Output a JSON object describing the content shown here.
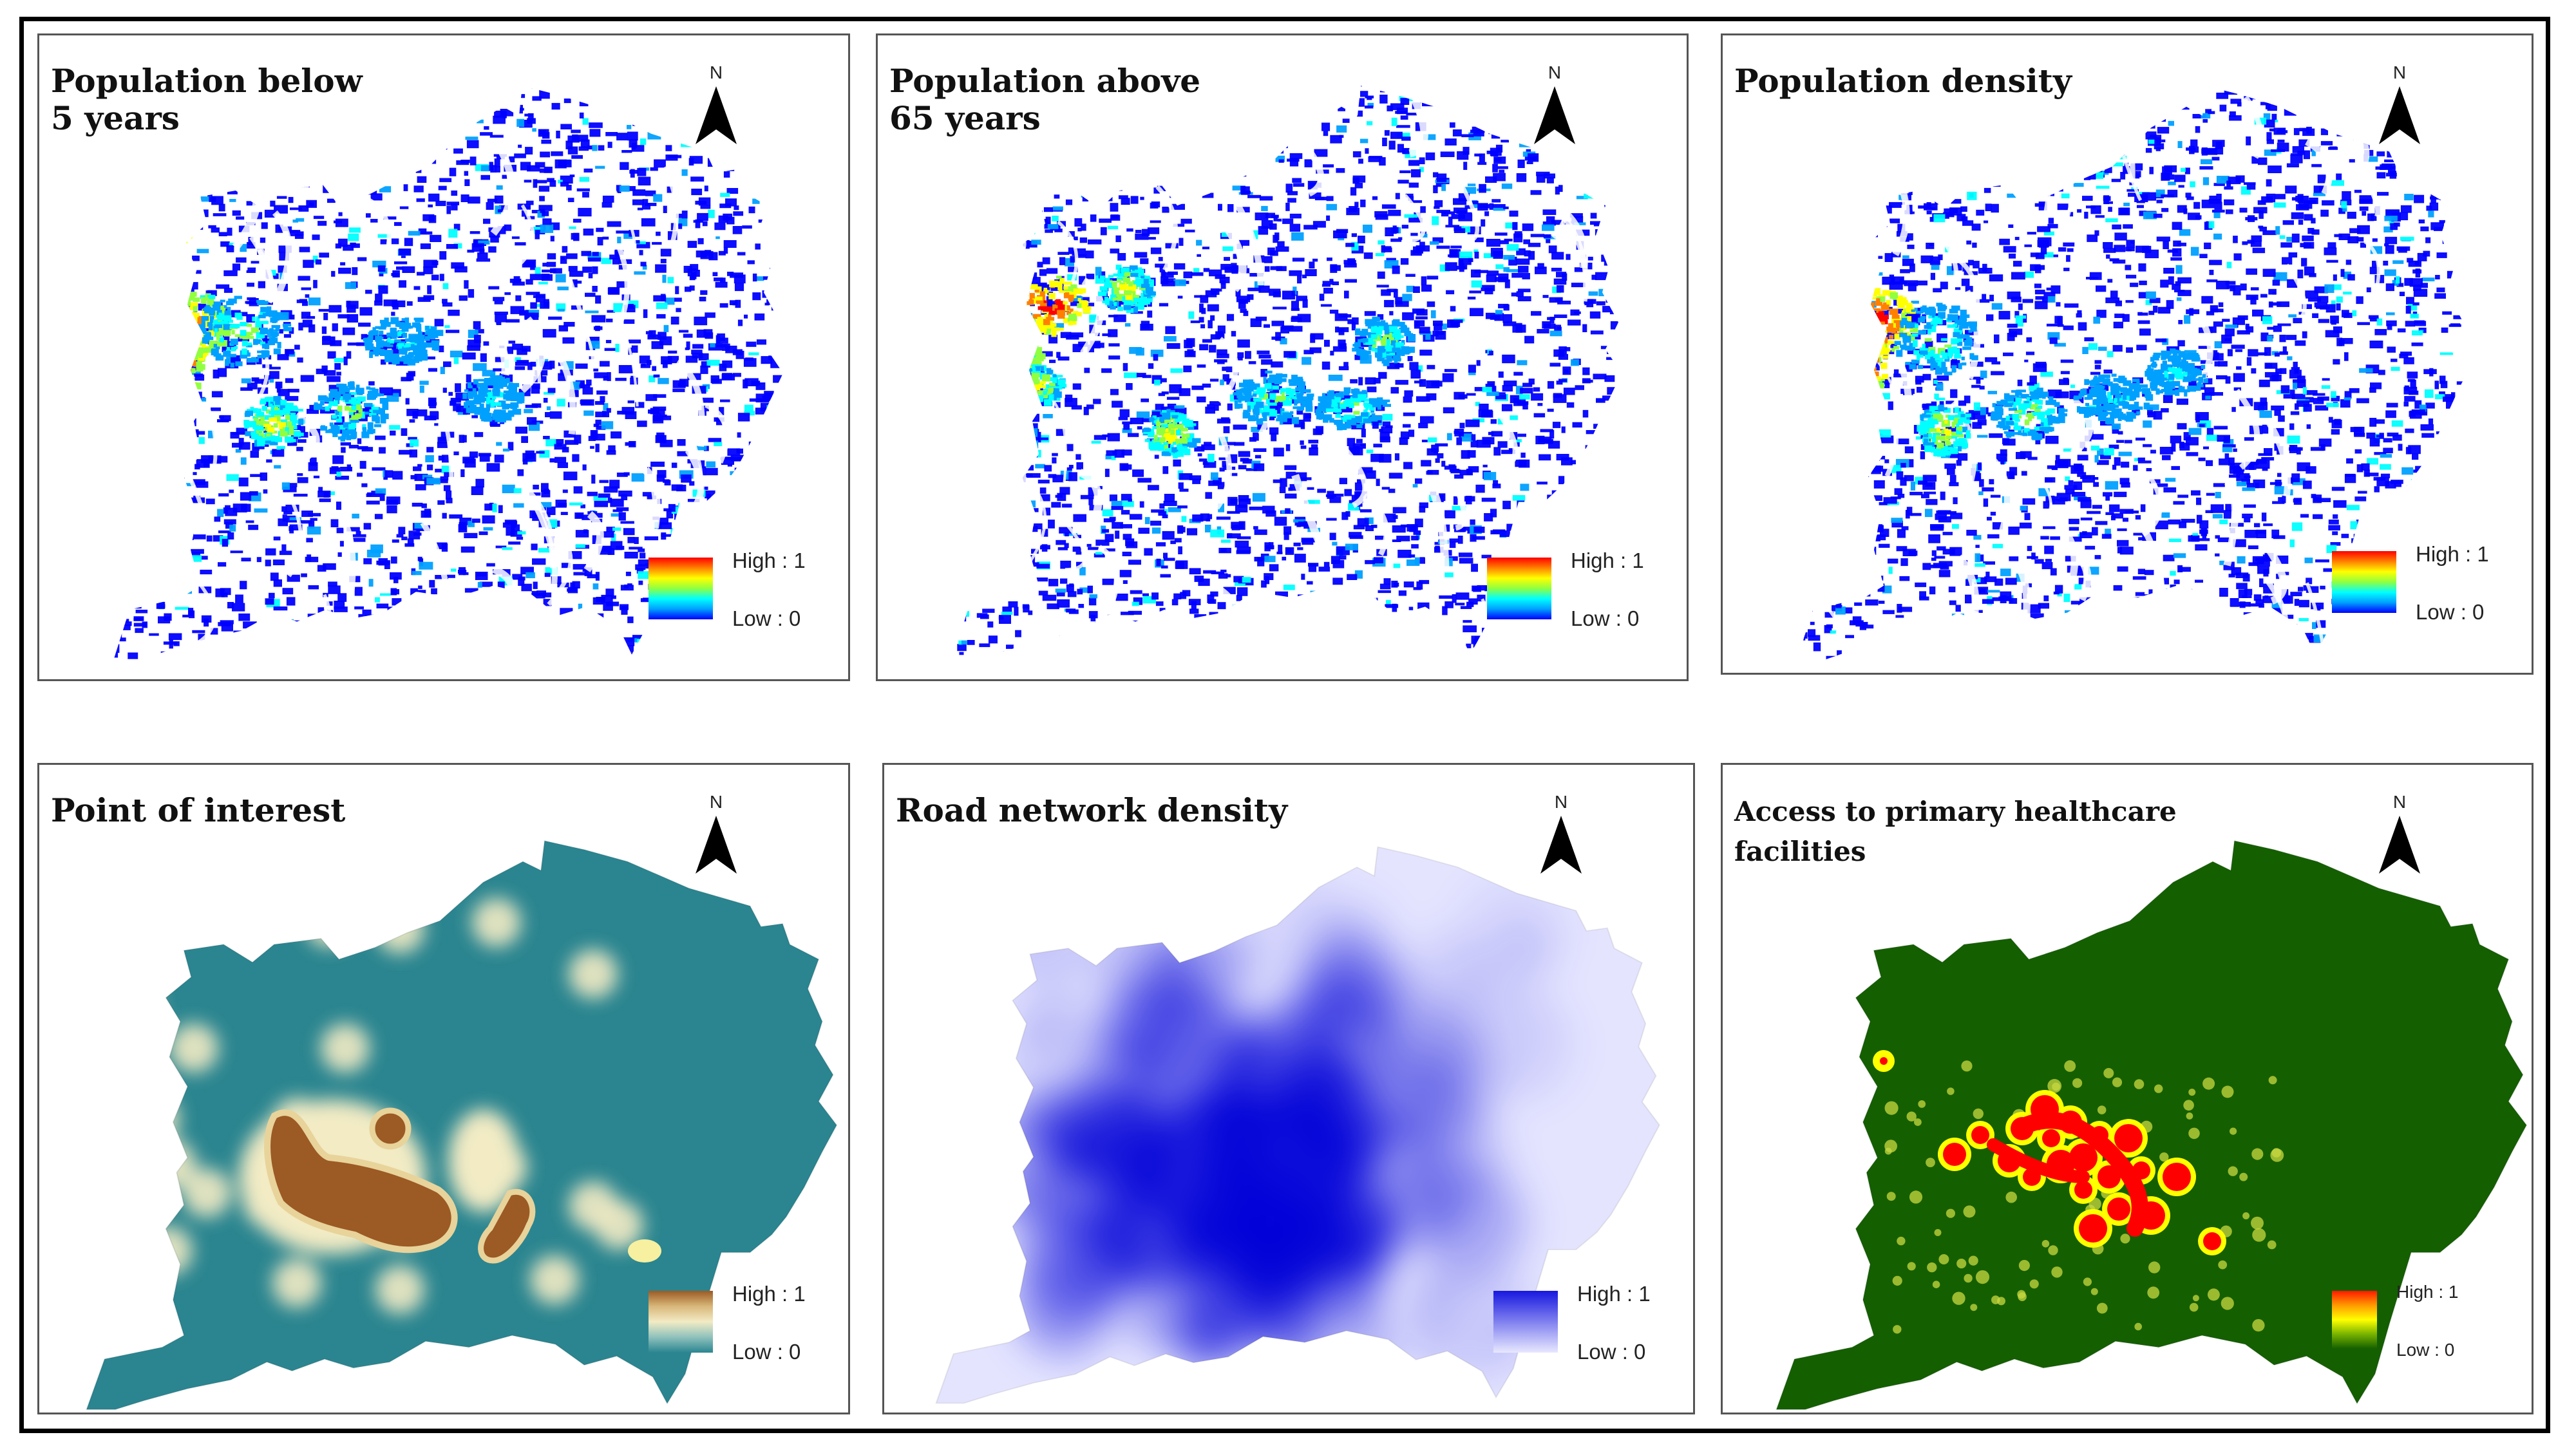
{
  "figure": {
    "panels": [
      {
        "id": "p1",
        "title": "Population below\n5 years",
        "north": "N",
        "legend": {
          "high": "High : 1",
          "low": "Low : 0"
        },
        "style": "population",
        "hotspots": "under5",
        "colors": [
          "#0000ff",
          "#00a0ff",
          "#00ffff",
          "#90ff40",
          "#ffff00",
          "#ff8000",
          "#ff0000"
        ]
      },
      {
        "id": "p2",
        "title": "Population above\n65 years",
        "north": "N",
        "legend": {
          "high": "High : 1",
          "low": "Low : 0"
        },
        "style": "population",
        "hotspots": "over65",
        "colors": [
          "#0000ff",
          "#00a0ff",
          "#00ffff",
          "#90ff40",
          "#ffff00",
          "#ff8000",
          "#ff0000"
        ]
      },
      {
        "id": "p3",
        "title": "Population density",
        "north": "N",
        "legend": {
          "high": "High : 1",
          "low": "Low : 0"
        },
        "style": "population",
        "hotspots": "density",
        "colors": [
          "#0000ff",
          "#00a0ff",
          "#00ffff",
          "#90ff40",
          "#ffff00",
          "#ff8000",
          "#ff0000"
        ]
      },
      {
        "id": "p4",
        "title": "Point of interest",
        "north": "N",
        "legend": {
          "high": "High : 1",
          "low": "Low : 0"
        },
        "style": "poi",
        "colors": [
          "#2a8590",
          "#f2ebc4",
          "#9c5a24"
        ]
      },
      {
        "id": "p5",
        "title": "Road network density",
        "north": "N",
        "legend": {
          "high": "High : 1",
          "low": "Low : 0"
        },
        "style": "road",
        "colors": [
          "#e4e4ff",
          "#0000d8"
        ]
      },
      {
        "id": "p6",
        "title": "Access to primary healthcare\nfacilities",
        "north": "N",
        "legend": {
          "high": "High : 1",
          "low": "Low : 0"
        },
        "style": "access",
        "colors": [
          "#145f00",
          "#ffff00",
          "#ff0000"
        ]
      }
    ]
  }
}
